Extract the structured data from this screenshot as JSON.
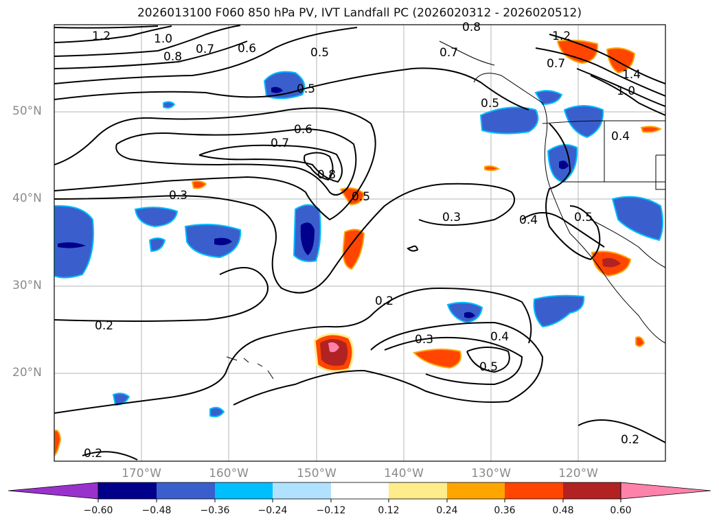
{
  "title": "2026013100 F060 850 hPa PV, IVT Landfall PC (2026020312 - 2026020512)",
  "map": {
    "lat_labels": [
      "50°N",
      "40°N",
      "30°N",
      "20°N"
    ],
    "lon_labels": [
      "170°W",
      "160°W",
      "150°W",
      "140°W",
      "130°W",
      "120°W"
    ],
    "contour_labels": [
      "1.2",
      "1.0",
      "0.8",
      "0.7",
      "0.6",
      "0.5",
      "0.5",
      "0.8",
      "0.7",
      "0.5",
      "1.2",
      "0.7",
      "1.4",
      "1.0",
      "0.6",
      "0.7",
      "0.8",
      "0.5",
      "0.3",
      "0.3",
      "0.4",
      "0.5",
      "0.4",
      "0.2",
      "0.2",
      "0.3",
      "0.4",
      "0.5",
      "0.2",
      "0.2"
    ]
  },
  "colorbar": {
    "ticks": [
      "−0.60",
      "−0.48",
      "−0.36",
      "−0.24",
      "−0.12",
      "0.12",
      "0.24",
      "0.36",
      "0.48",
      "0.60"
    ],
    "colors": [
      "#9932cc",
      "#00008b",
      "#3a5fcd",
      "#00bfff",
      "#b0e2ff",
      "#ffffff",
      "#ffec8b",
      "#ffa500",
      "#ff4500",
      "#b22222",
      "#ff82ab"
    ]
  }
}
